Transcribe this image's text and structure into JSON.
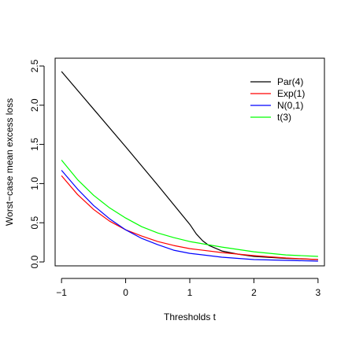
{
  "chart_data": {
    "type": "line",
    "title": "",
    "xlabel": "Thresholds t",
    "ylabel": "Worst−case mean excess loss",
    "xlim": [
      -1.1,
      3.1
    ],
    "ylim": [
      -0.05,
      2.6
    ],
    "xticks": [
      -1,
      0,
      1,
      2,
      3
    ],
    "xtick_labels": [
      "−1",
      "0",
      "1",
      "2",
      "3"
    ],
    "yticks": [
      0.0,
      0.5,
      1.0,
      1.5,
      2.0,
      2.5
    ],
    "ytick_labels": [
      "0.0",
      "0.5",
      "1.0",
      "1.5",
      "2.0",
      "2.5"
    ],
    "grid": false,
    "legend_position": "top-right",
    "series": [
      {
        "name": "Par(4)",
        "color": "#000000",
        "x": [
          -1,
          -0.5,
          0,
          0.5,
          1,
          1.1,
          1.2,
          1.3,
          1.5,
          1.75,
          2,
          2.5,
          3
        ],
        "y": [
          2.43,
          1.95,
          1.47,
          0.98,
          0.48,
          0.36,
          0.27,
          0.21,
          0.14,
          0.1,
          0.07,
          0.045,
          0.03
        ]
      },
      {
        "name": "Exp(1)",
        "color": "#ff0000",
        "x": [
          -1,
          -0.75,
          -0.5,
          -0.25,
          0,
          0.25,
          0.5,
          0.75,
          1,
          1.5,
          2,
          2.5,
          3
        ],
        "y": [
          1.1,
          0.86,
          0.67,
          0.52,
          0.41,
          0.33,
          0.26,
          0.21,
          0.17,
          0.12,
          0.08,
          0.05,
          0.03
        ]
      },
      {
        "name": "N(0,1)",
        "color": "#0000ff",
        "x": [
          -1,
          -0.75,
          -0.5,
          -0.25,
          0,
          0.25,
          0.5,
          0.75,
          1,
          1.5,
          2,
          2.5,
          3
        ],
        "y": [
          1.17,
          0.93,
          0.72,
          0.55,
          0.41,
          0.3,
          0.22,
          0.15,
          0.11,
          0.06,
          0.03,
          0.02,
          0.01
        ]
      },
      {
        "name": "t(3)",
        "color": "#00ff00",
        "x": [
          -1,
          -0.75,
          -0.5,
          -0.25,
          0,
          0.25,
          0.5,
          0.75,
          1,
          1.5,
          2,
          2.5,
          3
        ],
        "y": [
          1.3,
          1.05,
          0.85,
          0.69,
          0.56,
          0.45,
          0.37,
          0.31,
          0.26,
          0.19,
          0.13,
          0.09,
          0.07
        ]
      }
    ]
  }
}
